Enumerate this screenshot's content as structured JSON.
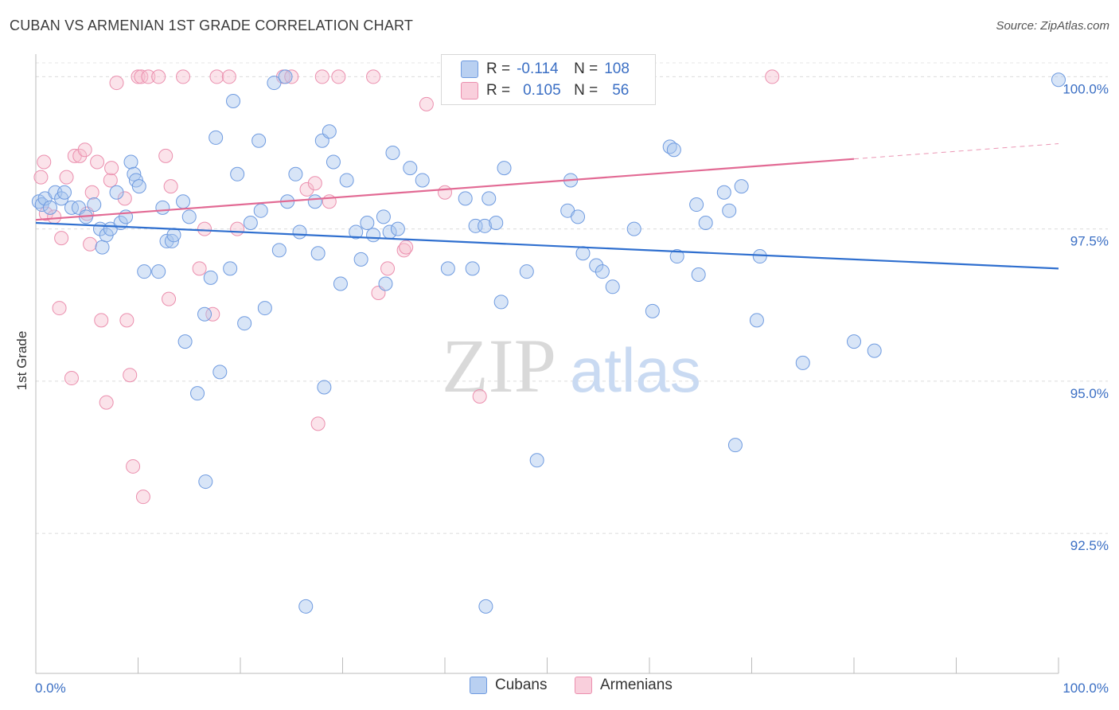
{
  "title": "CUBAN VS ARMENIAN 1ST GRADE CORRELATION CHART",
  "source": "Source: ZipAtlas.com",
  "watermark": {
    "zip": "ZIP",
    "atlas": "atlas"
  },
  "legend": {
    "rows": [
      {
        "r_label": "R =",
        "r_value": "-0.114",
        "n_label": "N =",
        "n_value": "108"
      },
      {
        "r_label": "R =",
        "r_value": "0.105",
        "n_label": "N =",
        "n_value": "56"
      }
    ]
  },
  "colors": {
    "cuban_fill": "#a8c6ee",
    "cuban_stroke": "#6f9be0",
    "cuban_line": "#2f6fcf",
    "armenian_fill": "#f6c0d1",
    "armenian_stroke": "#eb8fae",
    "armenian_line": "#e26a94",
    "axis_label": "#3b6fc4"
  },
  "chart_data": {
    "type": "scatter",
    "title": "CUBAN VS ARMENIAN 1ST GRADE CORRELATION CHART",
    "xlabel": "",
    "ylabel": "1st Grade",
    "xlim": [
      0,
      100
    ],
    "ylim": [
      90.2,
      100.45
    ],
    "x_tick_labels": [
      "0.0%",
      "100.0%"
    ],
    "y_ticks": [
      92.5,
      95.0,
      97.5,
      100.0
    ],
    "y_tick_labels": [
      "92.5%",
      "95.0%",
      "97.5%",
      "100.0%"
    ],
    "grid": true,
    "legend_position": "top-center",
    "series": [
      {
        "name": "Cubans",
        "r": -0.114,
        "n": 108,
        "trend": {
          "x": [
            0,
            100
          ],
          "y": [
            97.6,
            96.85
          ]
        },
        "points": [
          [
            0.3,
            97.95
          ],
          [
            0.6,
            97.9
          ],
          [
            0.9,
            98.0
          ],
          [
            1.4,
            97.85
          ],
          [
            1.9,
            98.1
          ],
          [
            2.5,
            98.0
          ],
          [
            2.8,
            98.1
          ],
          [
            3.5,
            97.85
          ],
          [
            4.2,
            97.85
          ],
          [
            4.9,
            97.7
          ],
          [
            5.7,
            97.9
          ],
          [
            6.3,
            97.5
          ],
          [
            6.5,
            97.2
          ],
          [
            6.9,
            97.4
          ],
          [
            7.3,
            97.5
          ],
          [
            7.9,
            98.1
          ],
          [
            8.3,
            97.6
          ],
          [
            8.8,
            97.7
          ],
          [
            9.3,
            98.6
          ],
          [
            9.6,
            98.4
          ],
          [
            9.8,
            98.3
          ],
          [
            10.1,
            98.2
          ],
          [
            10.6,
            96.8
          ],
          [
            12.4,
            97.85
          ],
          [
            12.0,
            96.8
          ],
          [
            12.8,
            97.3
          ],
          [
            13.3,
            97.3
          ],
          [
            13.5,
            97.4
          ],
          [
            14.4,
            97.95
          ],
          [
            14.6,
            95.65
          ],
          [
            15.0,
            97.7
          ],
          [
            15.8,
            94.8
          ],
          [
            16.5,
            96.1
          ],
          [
            16.6,
            93.35
          ],
          [
            17.1,
            96.7
          ],
          [
            17.6,
            99.0
          ],
          [
            18.0,
            95.15
          ],
          [
            19.0,
            96.85
          ],
          [
            19.3,
            99.6
          ],
          [
            19.7,
            98.4
          ],
          [
            20.4,
            95.95
          ],
          [
            21.0,
            97.6
          ],
          [
            21.8,
            98.95
          ],
          [
            22.0,
            97.8
          ],
          [
            22.4,
            96.2
          ],
          [
            23.3,
            99.9
          ],
          [
            23.8,
            97.15
          ],
          [
            24.6,
            97.95
          ],
          [
            24.4,
            100.0
          ],
          [
            25.4,
            98.4
          ],
          [
            25.8,
            97.45
          ],
          [
            26.4,
            91.3
          ],
          [
            27.3,
            97.95
          ],
          [
            27.6,
            97.1
          ],
          [
            28.0,
            98.95
          ],
          [
            28.2,
            94.9
          ],
          [
            28.7,
            99.1
          ],
          [
            29.1,
            98.6
          ],
          [
            29.8,
            96.6
          ],
          [
            30.4,
            98.3
          ],
          [
            31.3,
            97.45
          ],
          [
            31.8,
            97.0
          ],
          [
            32.4,
            97.6
          ],
          [
            33.0,
            97.4
          ],
          [
            34.0,
            97.7
          ],
          [
            34.6,
            97.45
          ],
          [
            34.2,
            96.6
          ],
          [
            34.9,
            98.75
          ],
          [
            35.4,
            97.5
          ],
          [
            36.6,
            98.5
          ],
          [
            37.8,
            98.3
          ],
          [
            40.3,
            96.85
          ],
          [
            42.0,
            98.0
          ],
          [
            42.7,
            96.85
          ],
          [
            43.0,
            97.55
          ],
          [
            43.9,
            97.55
          ],
          [
            44.0,
            91.3
          ],
          [
            44.3,
            98.0
          ],
          [
            45.0,
            97.6
          ],
          [
            45.5,
            96.3
          ],
          [
            45.8,
            98.5
          ],
          [
            48.0,
            96.8
          ],
          [
            49.0,
            93.7
          ],
          [
            52.0,
            97.8
          ],
          [
            52.3,
            98.3
          ],
          [
            53.0,
            97.7
          ],
          [
            53.5,
            97.1
          ],
          [
            54.8,
            96.9
          ],
          [
            55.4,
            96.8
          ],
          [
            56.4,
            96.55
          ],
          [
            58.5,
            97.5
          ],
          [
            60.3,
            96.15
          ],
          [
            62.0,
            98.85
          ],
          [
            62.4,
            98.8
          ],
          [
            62.7,
            97.05
          ],
          [
            64.6,
            97.9
          ],
          [
            64.8,
            96.75
          ],
          [
            65.5,
            97.6
          ],
          [
            67.3,
            98.1
          ],
          [
            67.8,
            97.8
          ],
          [
            68.4,
            93.95
          ],
          [
            69.0,
            98.2
          ],
          [
            70.5,
            96.0
          ],
          [
            70.8,
            97.05
          ],
          [
            75.0,
            95.3
          ],
          [
            80.0,
            95.65
          ],
          [
            82.0,
            95.5
          ],
          [
            100,
            99.95
          ]
        ]
      },
      {
        "name": "Armenians",
        "r": 0.105,
        "n": 56,
        "trend": {
          "x": [
            0,
            80
          ],
          "y": [
            97.65,
            98.65
          ]
        },
        "trend_dashed": {
          "x": [
            80,
            100
          ],
          "y": [
            98.65,
            98.9
          ]
        },
        "points": [
          [
            0.5,
            98.35
          ],
          [
            0.8,
            98.6
          ],
          [
            1.0,
            97.75
          ],
          [
            1.8,
            97.7
          ],
          [
            2.3,
            96.2
          ],
          [
            2.5,
            97.35
          ],
          [
            3.0,
            98.35
          ],
          [
            3.5,
            95.05
          ],
          [
            3.8,
            98.7
          ],
          [
            4.3,
            98.7
          ],
          [
            4.8,
            98.8
          ],
          [
            5.0,
            97.75
          ],
          [
            5.3,
            97.25
          ],
          [
            5.5,
            98.1
          ],
          [
            6.0,
            98.6
          ],
          [
            6.4,
            96.0
          ],
          [
            6.9,
            94.65
          ],
          [
            7.3,
            98.3
          ],
          [
            7.4,
            98.5
          ],
          [
            7.9,
            99.9
          ],
          [
            8.7,
            98.0
          ],
          [
            8.9,
            96.0
          ],
          [
            9.2,
            95.1
          ],
          [
            9.5,
            93.6
          ],
          [
            10.0,
            100.0
          ],
          [
            10.3,
            100.0
          ],
          [
            10.5,
            93.1
          ],
          [
            11.0,
            100.0
          ],
          [
            12.0,
            100.0
          ],
          [
            12.7,
            98.7
          ],
          [
            13.0,
            96.35
          ],
          [
            13.2,
            98.2
          ],
          [
            14.4,
            100.0
          ],
          [
            16.0,
            96.85
          ],
          [
            16.5,
            97.5
          ],
          [
            17.3,
            96.1
          ],
          [
            17.7,
            100.0
          ],
          [
            18.9,
            100.0
          ],
          [
            19.7,
            97.5
          ],
          [
            24.2,
            100.0
          ],
          [
            25.0,
            100.0
          ],
          [
            26.5,
            98.15
          ],
          [
            27.3,
            98.25
          ],
          [
            27.6,
            94.3
          ],
          [
            28.0,
            100.0
          ],
          [
            28.7,
            97.95
          ],
          [
            29.6,
            100.0
          ],
          [
            33.0,
            100.0
          ],
          [
            33.5,
            96.45
          ],
          [
            34.4,
            96.85
          ],
          [
            36.0,
            97.15
          ],
          [
            36.2,
            97.2
          ],
          [
            38.2,
            99.55
          ],
          [
            40.0,
            98.1
          ],
          [
            43.4,
            94.75
          ],
          [
            72.0,
            100.0
          ]
        ]
      }
    ]
  }
}
